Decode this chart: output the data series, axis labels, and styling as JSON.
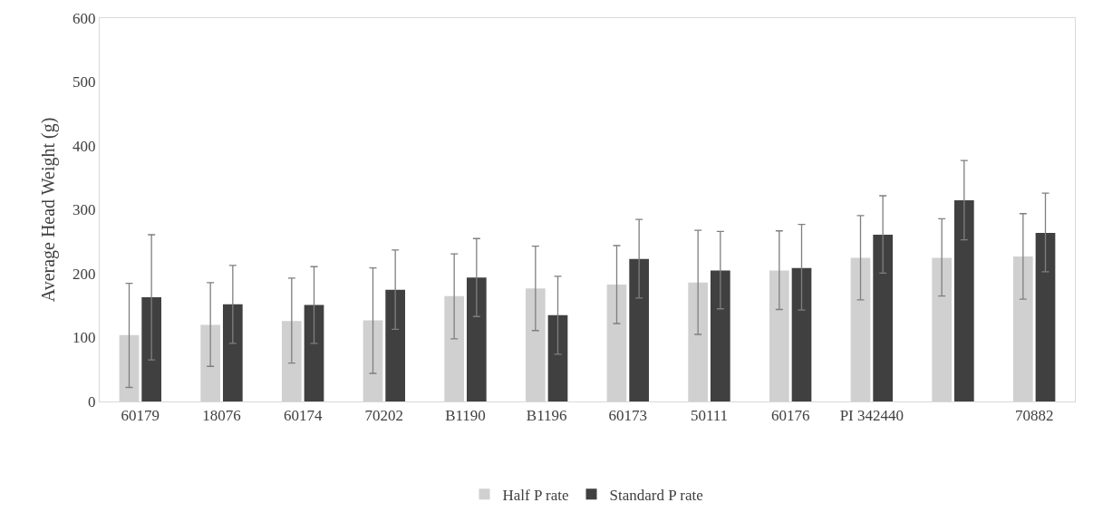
{
  "chart_data": {
    "type": "bar",
    "ylabel": "Average Head Weight (g)",
    "categories": [
      "60179",
      "18076",
      "60174",
      "70202",
      "B1190",
      "B1196",
      "60173",
      "50111",
      "60176",
      "PI 342440",
      null,
      "70882"
    ],
    "series": [
      {
        "name": "Half P rate",
        "color": "#d0d0d0",
        "values": [
          104,
          120,
          126,
          127,
          165,
          177,
          183,
          186,
          205,
          225,
          225,
          227
        ],
        "errors": [
          [
            22,
            185
          ],
          [
            55,
            186
          ],
          [
            60,
            193
          ],
          [
            44,
            209
          ],
          [
            98,
            231
          ],
          [
            111,
            243
          ],
          [
            122,
            244
          ],
          [
            105,
            268
          ],
          [
            144,
            267
          ],
          [
            159,
            291
          ],
          [
            165,
            286
          ],
          [
            160,
            294
          ]
        ]
      },
      {
        "name": "Standard P rate",
        "color": "#404040",
        "values": [
          163,
          152,
          151,
          175,
          194,
          135,
          223,
          205,
          209,
          261,
          315,
          264
        ],
        "errors": [
          [
            65,
            261
          ],
          [
            91,
            213
          ],
          [
            91,
            211
          ],
          [
            113,
            237
          ],
          [
            133,
            255
          ],
          [
            74,
            196
          ],
          [
            162,
            285
          ],
          [
            145,
            266
          ],
          [
            143,
            277
          ],
          [
            201,
            322
          ],
          [
            253,
            377
          ],
          [
            203,
            326
          ]
        ]
      }
    ],
    "ylim": [
      0,
      600
    ],
    "yticks": [
      0,
      100,
      200,
      300,
      400,
      500,
      600
    ],
    "grid": false,
    "legend": "bottom"
  }
}
